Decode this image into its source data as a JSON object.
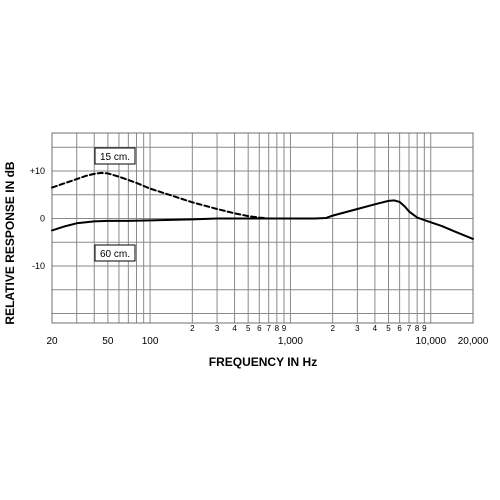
{
  "chart_data": {
    "type": "line",
    "title": "",
    "xlabel": "FREQUENCY IN Hz",
    "ylabel": "RELATIVE RESPONSE IN dB",
    "x_scale": "log",
    "xlim": [
      20,
      20000
    ],
    "ylim": [
      -22,
      18
    ],
    "grid": true,
    "legend": "none",
    "x_tick_labels": [
      {
        "value": 20,
        "label": "20"
      },
      {
        "value": 50,
        "label": "50"
      },
      {
        "value": 100,
        "label": "100"
      },
      {
        "value": 200,
        "label": "2"
      },
      {
        "value": 300,
        "label": "3"
      },
      {
        "value": 400,
        "label": "4"
      },
      {
        "value": 500,
        "label": "5"
      },
      {
        "value": 600,
        "label": "6"
      },
      {
        "value": 700,
        "label": "7"
      },
      {
        "value": 800,
        "label": "8"
      },
      {
        "value": 900,
        "label": "9"
      },
      {
        "value": 1000,
        "label": "1,000"
      },
      {
        "value": 2000,
        "label": "2"
      },
      {
        "value": 3000,
        "label": "3"
      },
      {
        "value": 4000,
        "label": "4"
      },
      {
        "value": 5000,
        "label": "5"
      },
      {
        "value": 6000,
        "label": "6"
      },
      {
        "value": 7000,
        "label": "7"
      },
      {
        "value": 8000,
        "label": "8"
      },
      {
        "value": 9000,
        "label": "9"
      },
      {
        "value": 10000,
        "label": "10,000"
      },
      {
        "value": 20000,
        "label": "20,000"
      }
    ],
    "y_tick_labels": [
      {
        "value": 10,
        "label": "+10"
      },
      {
        "value": 0,
        "label": "0"
      },
      {
        "value": -10,
        "label": "-10"
      }
    ],
    "series": [
      {
        "name": "15 cm.",
        "style": "dashed",
        "color": "#000000",
        "x": [
          20,
          25,
          30,
          35,
          40,
          45,
          50,
          60,
          80,
          100,
          150,
          200,
          300,
          400,
          500,
          600,
          700
        ],
        "y": [
          6.5,
          7.5,
          8.3,
          9.0,
          9.4,
          9.6,
          9.5,
          8.8,
          7.5,
          6.3,
          4.6,
          3.4,
          2.0,
          1.1,
          0.5,
          0.2,
          0
        ]
      },
      {
        "name": "60 cm.",
        "style": "solid",
        "color": "#000000",
        "x": [
          20,
          25,
          30,
          40,
          50,
          70,
          100,
          200,
          300,
          500,
          700,
          1000,
          1500,
          1800,
          2000,
          3000,
          4000,
          5000,
          5500,
          6000,
          6500,
          7000,
          8000,
          10000,
          12000,
          15000,
          20000
        ],
        "y": [
          -2.5,
          -1.6,
          -1.0,
          -0.6,
          -0.5,
          -0.5,
          -0.4,
          -0.2,
          0,
          0,
          0,
          0,
          0,
          0.1,
          0.6,
          2.0,
          3.0,
          3.7,
          3.8,
          3.5,
          2.6,
          1.5,
          0.2,
          -0.8,
          -1.6,
          -2.8,
          -4.3
        ]
      }
    ],
    "annotations": [
      {
        "text": "15 cm.",
        "series": "15 cm."
      },
      {
        "text": "60 cm.",
        "series": "60 cm."
      }
    ]
  }
}
